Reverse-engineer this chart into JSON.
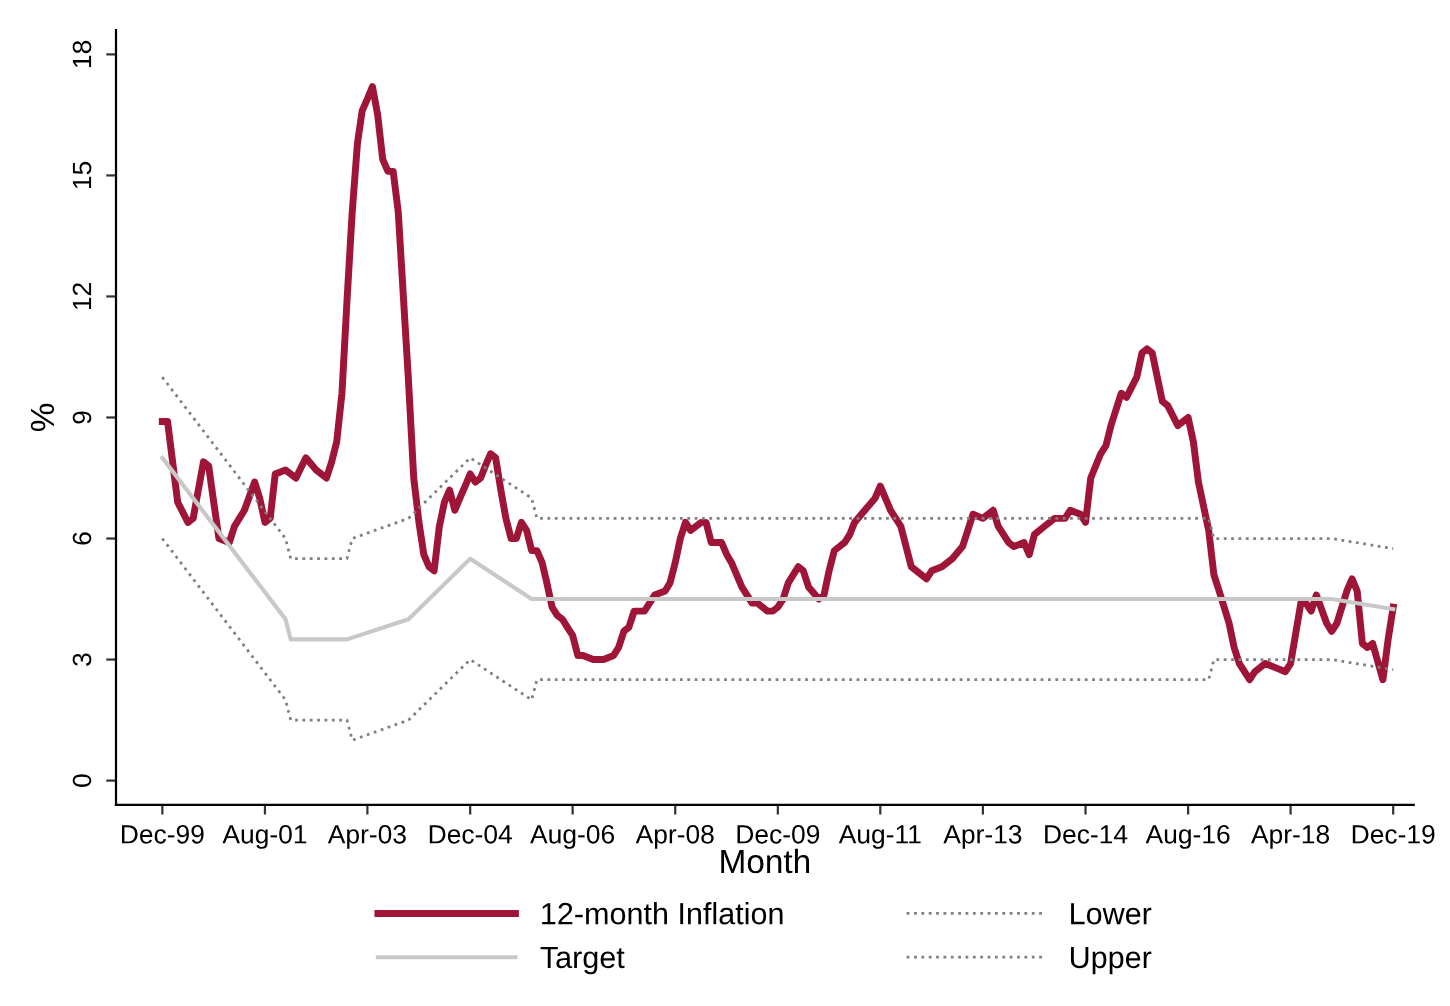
{
  "chart_data": {
    "type": "line",
    "xlabel": "Month",
    "ylabel": "%",
    "xlim": [
      "1999-03",
      "2020-04"
    ],
    "ylim": [
      -0.6,
      18.6
    ],
    "xticks": [
      {
        "value": "1999-12",
        "label": "Dec-99"
      },
      {
        "value": "2001-08",
        "label": "Aug-01"
      },
      {
        "value": "2003-04",
        "label": "Apr-03"
      },
      {
        "value": "2004-12",
        "label": "Dec-04"
      },
      {
        "value": "2006-08",
        "label": "Aug-06"
      },
      {
        "value": "2008-04",
        "label": "Apr-08"
      },
      {
        "value": "2009-12",
        "label": "Dec-09"
      },
      {
        "value": "2011-08",
        "label": "Aug-11"
      },
      {
        "value": "2013-04",
        "label": "Apr-13"
      },
      {
        "value": "2014-12",
        "label": "Dec-14"
      },
      {
        "value": "2016-08",
        "label": "Aug-16"
      },
      {
        "value": "2018-04",
        "label": "Apr-18"
      },
      {
        "value": "2019-12",
        "label": "Dec-19"
      }
    ],
    "yticks": [
      0,
      3,
      6,
      9,
      12,
      15,
      18
    ],
    "grid": false,
    "legend": "bottom",
    "marker": "none",
    "series": [
      {
        "name": "12-month Inflation",
        "color": "#9e1537",
        "line_style": "solid",
        "x": [
          "1999-12",
          "2000-01",
          "2000-03",
          "2000-05",
          "2000-06",
          "2000-08",
          "2000-09",
          "2000-10",
          "2000-11",
          "2001-01",
          "2001-02",
          "2001-04",
          "2001-06",
          "2001-07",
          "2001-08",
          "2001-09",
          "2001-10",
          "2001-12",
          "2002-02",
          "2002-04",
          "2002-06",
          "2002-08",
          "2002-09",
          "2002-10",
          "2002-11",
          "2002-12",
          "2003-01",
          "2003-02",
          "2003-03",
          "2003-04",
          "2003-05",
          "2003-06",
          "2003-07",
          "2003-08",
          "2003-09",
          "2003-10",
          "2003-12",
          "2004-01",
          "2004-02",
          "2004-03",
          "2004-04",
          "2004-05",
          "2004-06",
          "2004-07",
          "2004-08",
          "2004-09",
          "2004-10",
          "2004-11",
          "2004-12",
          "2005-01",
          "2005-02",
          "2005-03",
          "2005-04",
          "2005-05",
          "2005-06",
          "2005-07",
          "2005-08",
          "2005-09",
          "2005-10",
          "2005-11",
          "2005-12",
          "2006-01",
          "2006-02",
          "2006-03",
          "2006-04",
          "2006-05",
          "2006-06",
          "2006-07",
          "2006-08",
          "2006-09",
          "2006-10",
          "2006-12",
          "2007-02",
          "2007-04",
          "2007-05",
          "2007-06",
          "2007-07",
          "2007-08",
          "2007-10",
          "2007-11",
          "2007-12",
          "2008-02",
          "2008-03",
          "2008-04",
          "2008-05",
          "2008-06",
          "2008-07",
          "2008-08",
          "2008-09",
          "2008-10",
          "2008-11",
          "2009-01",
          "2009-02",
          "2009-03",
          "2009-05",
          "2009-07",
          "2009-08",
          "2009-10",
          "2009-11",
          "2009-12",
          "2010-01",
          "2010-02",
          "2010-04",
          "2010-05",
          "2010-06",
          "2010-08",
          "2010-09",
          "2010-10",
          "2010-11",
          "2011-01",
          "2011-02",
          "2011-03",
          "2011-05",
          "2011-07",
          "2011-08",
          "2011-10",
          "2011-12",
          "2012-01",
          "2012-02",
          "2012-04",
          "2012-05",
          "2012-06",
          "2012-08",
          "2012-10",
          "2012-12",
          "2013-01",
          "2013-02",
          "2013-04",
          "2013-06",
          "2013-07",
          "2013-09",
          "2013-10",
          "2013-12",
          "2014-01",
          "2014-02",
          "2014-04",
          "2014-06",
          "2014-08",
          "2014-09",
          "2014-11",
          "2014-12",
          "2015-01",
          "2015-03",
          "2015-04",
          "2015-05",
          "2015-07",
          "2015-08",
          "2015-10",
          "2015-11",
          "2015-12",
          "2016-01",
          "2016-03",
          "2016-04",
          "2016-06",
          "2016-08",
          "2016-09",
          "2016-10",
          "2016-12",
          "2017-01",
          "2017-02",
          "2017-04",
          "2017-05",
          "2017-06",
          "2017-08",
          "2017-09",
          "2017-11",
          "2018-01",
          "2018-03",
          "2018-04",
          "2018-06",
          "2018-07",
          "2018-08",
          "2018-09",
          "2018-11",
          "2018-12",
          "2019-01",
          "2019-03",
          "2019-04",
          "2019-05",
          "2019-06",
          "2019-07",
          "2019-08",
          "2019-10",
          "2019-11",
          "2019-12"
        ],
        "values": [
          8.9,
          8.9,
          6.9,
          6.4,
          6.5,
          7.9,
          7.8,
          6.9,
          6.0,
          5.9,
          6.3,
          6.7,
          7.4,
          7.0,
          6.4,
          6.5,
          7.6,
          7.7,
          7.5,
          8.0,
          7.7,
          7.5,
          7.9,
          8.4,
          9.6,
          11.9,
          14.1,
          15.8,
          16.6,
          16.9,
          17.2,
          16.5,
          15.4,
          15.1,
          15.1,
          14.1,
          9.9,
          7.5,
          6.4,
          5.6,
          5.3,
          5.2,
          6.3,
          6.9,
          7.2,
          6.7,
          7.0,
          7.3,
          7.6,
          7.4,
          7.5,
          7.8,
          8.1,
          8.0,
          7.2,
          6.5,
          6.0,
          6.0,
          6.4,
          6.2,
          5.7,
          5.7,
          5.4,
          4.9,
          4.3,
          4.1,
          4.0,
          3.8,
          3.6,
          3.1,
          3.1,
          3.0,
          3.0,
          3.1,
          3.3,
          3.7,
          3.8,
          4.2,
          4.2,
          4.4,
          4.6,
          4.7,
          4.9,
          5.4,
          6.0,
          6.4,
          6.2,
          6.3,
          6.4,
          6.4,
          5.9,
          5.9,
          5.6,
          5.4,
          4.8,
          4.4,
          4.4,
          4.2,
          4.2,
          4.3,
          4.5,
          4.9,
          5.3,
          5.2,
          4.8,
          4.5,
          4.6,
          5.2,
          5.7,
          5.9,
          6.1,
          6.4,
          6.7,
          7.0,
          7.3,
          6.7,
          6.3,
          5.8,
          5.3,
          5.1,
          5.0,
          5.2,
          5.3,
          5.5,
          5.8,
          6.2,
          6.6,
          6.5,
          6.7,
          6.3,
          5.9,
          5.8,
          5.9,
          5.6,
          6.1,
          6.3,
          6.5,
          6.5,
          6.7,
          6.6,
          6.4,
          7.5,
          8.1,
          8.3,
          8.8,
          9.6,
          9.5,
          10.0,
          10.6,
          10.7,
          10.6,
          9.4,
          9.3,
          8.8,
          9.0,
          8.4,
          7.4,
          6.2,
          5.1,
          4.7,
          3.9,
          3.3,
          2.9,
          2.5,
          2.7,
          2.9,
          2.8,
          2.7,
          2.9,
          4.4,
          4.4,
          4.2,
          4.6,
          3.9,
          3.7,
          3.9,
          4.7,
          5.0,
          4.7,
          3.4,
          3.3,
          3.4,
          2.5,
          3.5,
          4.3
        ]
      },
      {
        "name": "Target",
        "color": "#c8c8c8",
        "line_style": "solid",
        "x": [
          "1999-12",
          "2001-12",
          "2002-01",
          "2002-12",
          "2003-12",
          "2004-12",
          "2005-12",
          "2018-12",
          "2019-12"
        ],
        "values": [
          8,
          4,
          3.5,
          3.5,
          4,
          5.5,
          4.5,
          4.5,
          4.25
        ]
      },
      {
        "name": "Lower",
        "color": "#808080",
        "line_style": "dotted",
        "x": [
          "1999-12",
          "2001-12",
          "2002-01",
          "2002-12",
          "2003-01",
          "2003-12",
          "2004-12",
          "2005-12",
          "2006-01",
          "2016-12",
          "2017-01",
          "2018-12",
          "2019-12"
        ],
        "values": [
          6,
          2,
          1.5,
          1.5,
          1.0,
          1.5,
          3.0,
          2.0,
          2.5,
          2.5,
          3.0,
          3.0,
          2.75
        ]
      },
      {
        "name": "Upper",
        "color": "#808080",
        "line_style": "dotted",
        "x": [
          "1999-12",
          "2001-12",
          "2002-01",
          "2002-12",
          "2003-01",
          "2003-12",
          "2004-12",
          "2005-12",
          "2006-01",
          "2016-12",
          "2017-01",
          "2018-12",
          "2019-12"
        ],
        "values": [
          10,
          6,
          5.5,
          5.5,
          6.0,
          6.5,
          8,
          7,
          6.5,
          6.5,
          6.0,
          6.0,
          5.75
        ]
      }
    ]
  }
}
